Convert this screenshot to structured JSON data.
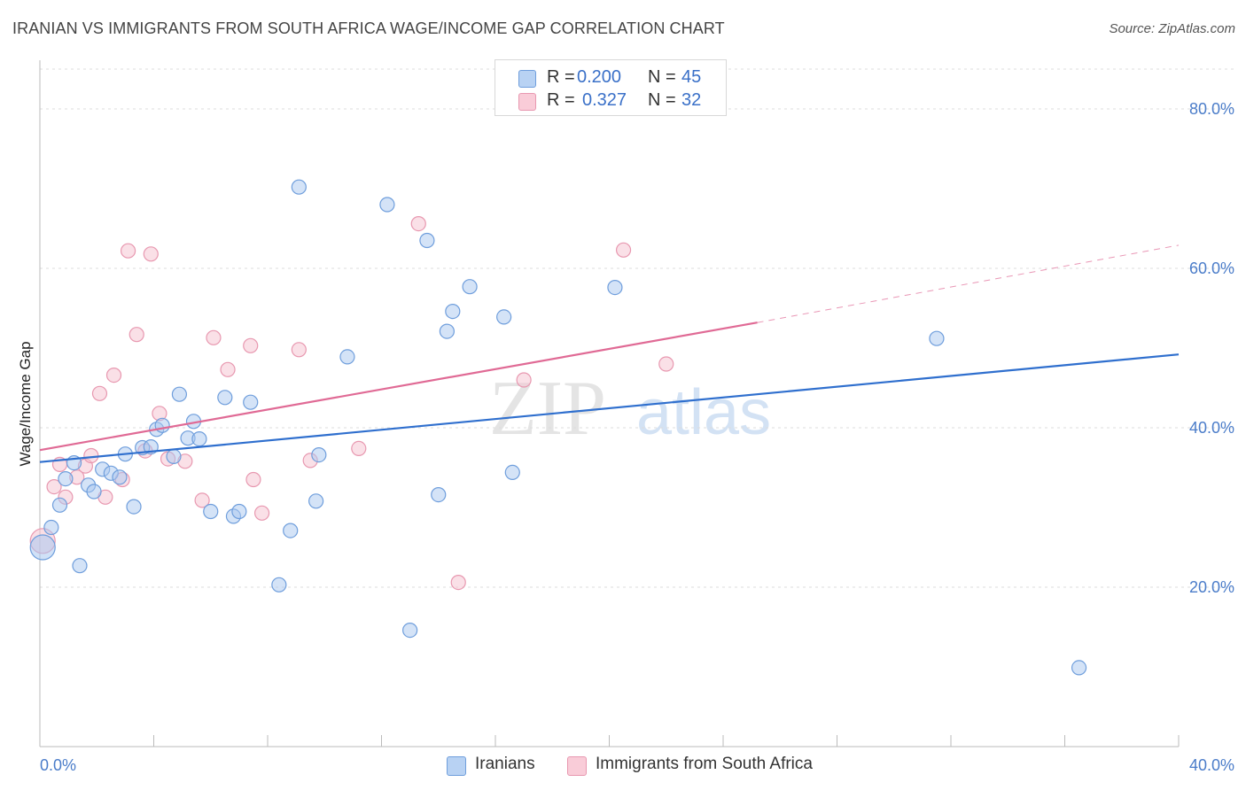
{
  "header": {
    "title": "IRANIAN VS IMMIGRANTS FROM SOUTH AFRICA WAGE/INCOME GAP CORRELATION CHART",
    "source": "Source: ZipAtlas.com"
  },
  "watermark": {
    "zip": "ZIP",
    "atlas": "atlas"
  },
  "legend_top": {
    "rows": [
      {
        "r_key": "R =",
        "r_val": "0.200",
        "n_key": "N =",
        "n_val": "45"
      },
      {
        "r_key": "R =",
        "r_val": "0.327",
        "n_key": "N =",
        "n_val": "32"
      }
    ]
  },
  "legend_bottom": {
    "series1": "Iranians",
    "series2": "Immigrants from South Africa"
  },
  "chart_data": {
    "type": "scatter",
    "title": "IRANIAN VS IMMIGRANTS FROM SOUTH AFRICA WAGE/INCOME GAP CORRELATION CHART",
    "xlabel": "",
    "ylabel": "Wage/Income Gap",
    "xlim": [
      0,
      40
    ],
    "ylim": [
      0,
      85
    ],
    "x_tick_labels": [
      "0.0%",
      "40.0%"
    ],
    "y_ticks": [
      20,
      40,
      60,
      80
    ],
    "y_tick_labels": [
      "20.0%",
      "40.0%",
      "60.0%",
      "80.0%"
    ],
    "grid": true,
    "legend_position": "top-center",
    "colors": {
      "iranians_fill": "#aac8f0",
      "iranians_stroke": "#6f9edc",
      "iranians_line": "#2f6fce",
      "sa_fill": "#f6c2d0",
      "sa_stroke": "#e898b0",
      "sa_line": "#e06a95",
      "tick_label": "#4a7cc9"
    },
    "series": [
      {
        "name": "Iranians",
        "r": 0.2,
        "n": 45,
        "trend": {
          "x": [
            0,
            40
          ],
          "y": [
            35.7,
            49.2
          ]
        },
        "points": [
          [
            0.1,
            25.0
          ],
          [
            0.4,
            27.5
          ],
          [
            0.7,
            30.3
          ],
          [
            0.9,
            33.6
          ],
          [
            1.2,
            35.6
          ],
          [
            1.4,
            22.7
          ],
          [
            1.7,
            32.8
          ],
          [
            1.9,
            32.0
          ],
          [
            2.2,
            34.8
          ],
          [
            2.5,
            34.3
          ],
          [
            2.8,
            33.8
          ],
          [
            3.0,
            36.7
          ],
          [
            3.3,
            30.1
          ],
          [
            3.6,
            37.5
          ],
          [
            3.9,
            37.6
          ],
          [
            4.1,
            39.8
          ],
          [
            4.3,
            40.3
          ],
          [
            4.7,
            36.4
          ],
          [
            4.9,
            44.2
          ],
          [
            5.2,
            38.7
          ],
          [
            5.4,
            40.8
          ],
          [
            5.6,
            38.6
          ],
          [
            6.0,
            29.5
          ],
          [
            6.5,
            43.8
          ],
          [
            6.8,
            28.9
          ],
          [
            7.0,
            29.5
          ],
          [
            7.4,
            43.2
          ],
          [
            8.4,
            20.3
          ],
          [
            8.8,
            27.1
          ],
          [
            9.1,
            70.2
          ],
          [
            9.7,
            30.8
          ],
          [
            9.8,
            36.6
          ],
          [
            10.8,
            48.9
          ],
          [
            12.2,
            68.0
          ],
          [
            13.0,
            14.6
          ],
          [
            13.6,
            63.5
          ],
          [
            14.0,
            31.6
          ],
          [
            14.3,
            52.1
          ],
          [
            14.5,
            54.6
          ],
          [
            15.1,
            57.7
          ],
          [
            16.3,
            53.9
          ],
          [
            16.6,
            34.4
          ],
          [
            20.2,
            57.6
          ],
          [
            31.5,
            51.2
          ],
          [
            36.5,
            9.9
          ]
        ]
      },
      {
        "name": "Immigrants from South Africa",
        "r": 0.327,
        "n": 32,
        "trend": {
          "x": [
            0,
            25.2
          ],
          "y": [
            37.2,
            53.2
          ]
        },
        "trend_dashed": {
          "x": [
            25.2,
            40
          ],
          "y": [
            53.2,
            62.9
          ]
        },
        "points": [
          [
            0.1,
            25.8
          ],
          [
            0.5,
            32.6
          ],
          [
            0.7,
            35.4
          ],
          [
            0.9,
            31.3
          ],
          [
            1.3,
            33.8
          ],
          [
            1.6,
            35.2
          ],
          [
            1.8,
            36.5
          ],
          [
            2.1,
            44.3
          ],
          [
            2.3,
            31.3
          ],
          [
            2.6,
            46.6
          ],
          [
            2.9,
            33.5
          ],
          [
            3.1,
            62.2
          ],
          [
            3.4,
            51.7
          ],
          [
            3.7,
            37.1
          ],
          [
            3.9,
            61.8
          ],
          [
            4.2,
            41.8
          ],
          [
            4.5,
            36.1
          ],
          [
            5.1,
            35.8
          ],
          [
            5.7,
            30.9
          ],
          [
            6.1,
            51.3
          ],
          [
            6.6,
            47.3
          ],
          [
            7.4,
            50.3
          ],
          [
            7.5,
            33.5
          ],
          [
            7.8,
            29.3
          ],
          [
            9.1,
            49.8
          ],
          [
            9.5,
            35.9
          ],
          [
            11.2,
            37.4
          ],
          [
            13.3,
            65.6
          ],
          [
            14.7,
            20.6
          ],
          [
            17.0,
            46.0
          ],
          [
            20.5,
            62.3
          ],
          [
            22.0,
            48.0
          ]
        ]
      }
    ]
  }
}
